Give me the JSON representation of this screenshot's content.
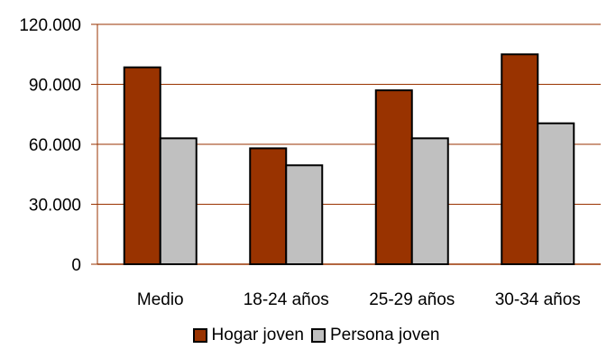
{
  "chart_data": {
    "type": "bar",
    "categories": [
      "Medio",
      "18-24 años",
      "25-29 años",
      "30-34 años"
    ],
    "series": [
      {
        "name": "Hogar joven",
        "values": [
          98500,
          58000,
          87000,
          105000
        ],
        "color": "#993300"
      },
      {
        "name": "Persona joven",
        "values": [
          63000,
          49500,
          63000,
          70500
        ],
        "color": "#c0c0c0"
      }
    ],
    "yticks": [
      "0",
      "30.000",
      "60.000",
      "90.000",
      "120.000"
    ],
    "ylim": [
      0,
      120000
    ],
    "grid": true,
    "gridline_color": "#993300",
    "legend": "bottom",
    "title": "",
    "xlabel": "",
    "ylabel": ""
  }
}
